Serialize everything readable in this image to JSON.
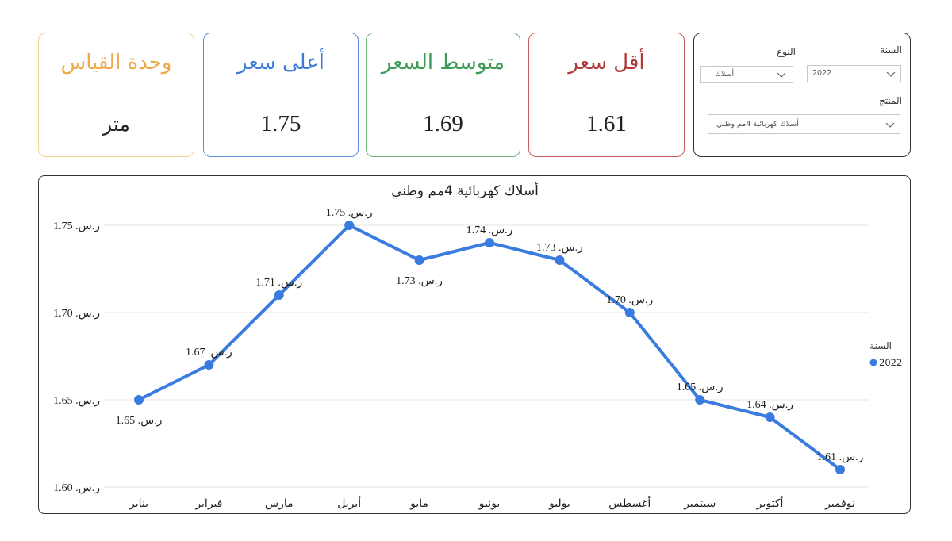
{
  "cards": {
    "unit": {
      "title": "وحدة القياس",
      "value": "متر",
      "color": "#F0A94A"
    },
    "max": {
      "title": "أعلى سعر",
      "value": "1.75",
      "color": "#3A7BD5"
    },
    "avg": {
      "title": "متوسط السعر",
      "value": "1.69",
      "color": "#3E9B57"
    },
    "min": {
      "title": "أقل سعر",
      "value": "1.61",
      "color": "#B03A3A"
    }
  },
  "filters": {
    "year_label": "السنة",
    "year_value": "2022",
    "type_label": "النوع",
    "type_value": "أسلاك",
    "product_label": "المنتج",
    "product_value": "أسلاك كهربائية 4مم وطني"
  },
  "chart_data": {
    "type": "line",
    "title": "أسلاك كهربائية 4مم وطني",
    "categories": [
      "يناير",
      "فبراير",
      "مارس",
      "أبريل",
      "مايو",
      "يونيو",
      "يوليو",
      "أغسطس",
      "سبتمبر",
      "أكتوبر",
      "نوفمبر"
    ],
    "series": [
      {
        "name": "2022",
        "values": [
          1.65,
          1.67,
          1.71,
          1.75,
          1.73,
          1.74,
          1.73,
          1.7,
          1.65,
          1.64,
          1.61
        ],
        "color": "#3A7BE0"
      }
    ],
    "data_labels": [
      "ر.س. 1.65",
      "ر.س. 1.67",
      "ر.س. 1.71",
      "ر.س. 1.75",
      "ر.س. 1.73",
      "ر.س. 1.74",
      "ر.س. 1.73",
      "ر.س. 1.70",
      "ر.س. 1.65",
      "ر.س. 1.64",
      "ر.س. 1.61"
    ],
    "label_above": [
      false,
      true,
      true,
      true,
      false,
      true,
      true,
      true,
      true,
      true,
      true
    ],
    "y_ticks": [
      1.6,
      1.65,
      1.7,
      1.75
    ],
    "y_tick_labels": [
      "ر.س. 1.60",
      "ر.س. 1.65",
      "ر.س. 1.70",
      "ر.س. 1.75"
    ],
    "ylim": [
      1.6,
      1.75
    ],
    "grid": true,
    "legend": {
      "title": "السنة",
      "position": "right"
    },
    "xlabel": "",
    "ylabel": ""
  }
}
